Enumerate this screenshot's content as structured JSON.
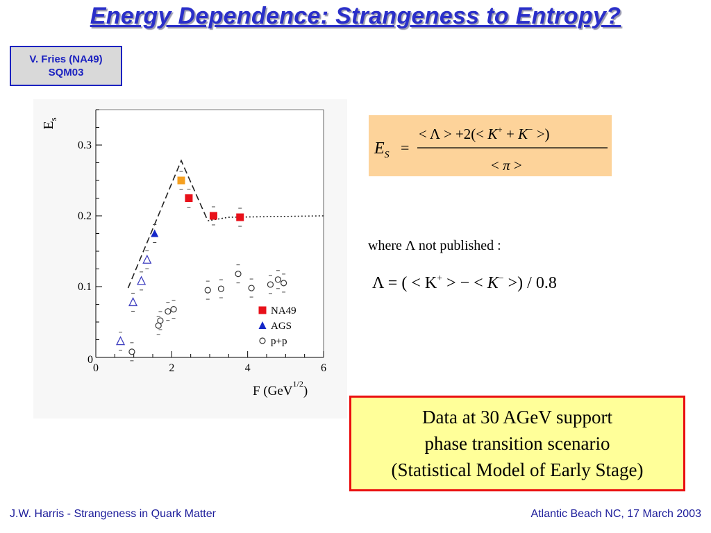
{
  "slide": {
    "title": "Energy Dependence: Strangeness to Entropy?",
    "credit_line1": "V. Fries (NA49)",
    "credit_line2": "SQM03",
    "where_text": "where Λ not published :",
    "conclusion_lines": [
      "Data at 30 AGeV support",
      "phase transition scenario",
      "(Statistical Model of Early Stage)"
    ],
    "footer_left": "J.W. Harris - Strangeness in Quark Matter",
    "footer_right": "Atlantic Beach NC, 17 March 2003"
  },
  "formula_es": {
    "lhs": "E",
    "lhs_sub": "S",
    "eq": "=",
    "num_1": "< Λ > +2(< ",
    "num_k": "K",
    "num_plus_sup": "+",
    "num_2": " + ",
    "num_k2": "K",
    "num_minus_sup": "−",
    "num_3": " >)",
    "den_1": "< ",
    "den_pi": "π",
    "den_2": " >"
  },
  "formula_lambda": {
    "lhs": "Λ = ( < K",
    "sup_plus": "+",
    "mid": " > − < ",
    "k": "K",
    "sup_minus": "−",
    "rhs": " >) / 0.8"
  },
  "chart_data": {
    "type": "scatter",
    "xlabel": "F (GeV",
    "xlabel_sup": "1/2",
    "xlabel_close": ")",
    "ylabel": "E",
    "ylabel_sub": "s",
    "xlim": [
      0,
      6
    ],
    "ylim": [
      0,
      0.35
    ],
    "x_ticks": [
      0,
      2,
      4,
      6
    ],
    "y_ticks": [
      0.1,
      0.2,
      0.3
    ],
    "y_zero_label": "0",
    "series": [
      {
        "name": "NA49",
        "marker": "square",
        "color": "#e8111a",
        "points": [
          {
            "x": 2.45,
            "y": 0.225
          },
          {
            "x": 3.1,
            "y": 0.2
          },
          {
            "x": 3.8,
            "y": 0.198
          }
        ]
      },
      {
        "name": "",
        "marker": "square",
        "color": "#f5a020",
        "points": [
          {
            "x": 2.25,
            "y": 0.25
          }
        ]
      },
      {
        "name": "AGS",
        "marker": "triangle-filled",
        "color": "#1527c8",
        "points": [
          {
            "x": 1.55,
            "y": 0.175
          }
        ]
      },
      {
        "name": "",
        "marker": "triangle-open",
        "color": "#4040c0",
        "points": [
          {
            "x": 0.65,
            "y": 0.023
          },
          {
            "x": 0.98,
            "y": 0.078
          },
          {
            "x": 1.2,
            "y": 0.108
          },
          {
            "x": 1.35,
            "y": 0.138
          }
        ]
      },
      {
        "name": "p+p",
        "marker": "circle-open",
        "color": "#333333",
        "points": [
          {
            "x": 0.95,
            "y": 0.008
          },
          {
            "x": 1.65,
            "y": 0.045
          },
          {
            "x": 1.7,
            "y": 0.052
          },
          {
            "x": 1.9,
            "y": 0.065
          },
          {
            "x": 2.05,
            "y": 0.068
          },
          {
            "x": 2.95,
            "y": 0.095
          },
          {
            "x": 3.3,
            "y": 0.097
          },
          {
            "x": 3.75,
            "y": 0.118
          },
          {
            "x": 4.1,
            "y": 0.098
          },
          {
            "x": 4.6,
            "y": 0.103
          },
          {
            "x": 4.8,
            "y": 0.11
          },
          {
            "x": 4.95,
            "y": 0.105
          }
        ]
      }
    ],
    "dashed_curve": [
      {
        "x": 0.85,
        "y": 0.098
      },
      {
        "x": 2.25,
        "y": 0.278
      },
      {
        "x": 2.95,
        "y": 0.193
      }
    ],
    "dotted_curve": [
      {
        "x": 2.95,
        "y": 0.193
      },
      {
        "x": 3.5,
        "y": 0.198
      },
      {
        "x": 6,
        "y": 0.2
      }
    ],
    "legend": [
      {
        "label": "NA49",
        "marker": "square",
        "color": "#e8111a"
      },
      {
        "label": "AGS",
        "marker": "triangle-filled",
        "color": "#1527c8"
      },
      {
        "label": "p+p",
        "marker": "circle-open",
        "color": "#333333"
      }
    ],
    "legend_position": "bottom-right",
    "grid": false
  }
}
